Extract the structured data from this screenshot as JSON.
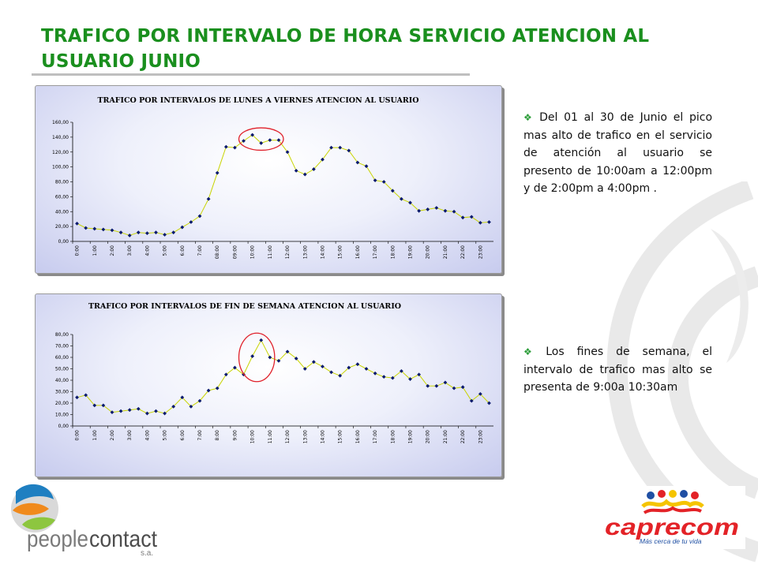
{
  "slide": {
    "title": "TRAFICO POR INTERVALO DE HORA SERVICIO ATENCION AL USUARIO JUNIO"
  },
  "notes": [
    {
      "icon": "diamond-bullet-icon",
      "text": "Del 01 al 30 de Junio el pico mas alto de trafico en el servicio de atención al usuario se presento de 10:00am a 12:00pm y de 2:00pm a 4:00pm ."
    },
    {
      "icon": "diamond-bullet-icon",
      "text": "Los fines de semana, el intervalo de trafico mas alto se presenta de 9:00a 10:30am"
    }
  ],
  "logos": {
    "peoplecontact": {
      "text_people": "people",
      "text_contact": "contact",
      "text_sa": "s.a."
    },
    "caprecom": {
      "name": "caprecom",
      "tagline": "Más cerca de tu vida"
    }
  },
  "colors": {
    "title": "#1a8f1e",
    "line": "#c8d400",
    "marker": "#0a1a6e",
    "highlight_circle": "#e0202a",
    "bullet": "#2e9e3b"
  },
  "chart_data": [
    {
      "type": "line",
      "title": "TRAFICO POR INTERVALOS DE LUNES A VIERNES ATENCION AL USUARIO",
      "categories": [
        "0:00",
        "0:30",
        "1:00",
        "1:30",
        "2:00",
        "2:30",
        "3:00",
        "3:30",
        "4:00",
        "4:30",
        "5:00",
        "5:30",
        "6:00",
        "6:30",
        "7:00",
        "7:30",
        "8:00",
        "8:30",
        "9:00",
        "9:30",
        "10:00",
        "10:30",
        "11:00",
        "11:30",
        "12:00",
        "12:30",
        "13:00",
        "13:30",
        "14:00",
        "14:30",
        "15:00",
        "15:30",
        "16:00",
        "16:30",
        "17:00",
        "17:30",
        "18:00",
        "18:30",
        "19:00",
        "19:30",
        "20:00",
        "20:30",
        "21:00",
        "21:30",
        "22:00",
        "22:30",
        "23:00",
        "23:30"
      ],
      "tick_labels": [
        "0:00",
        "1:00",
        "2:00",
        "3:00",
        "4:00",
        "5:00",
        "6:00",
        "7:00",
        "08:00",
        "09:00",
        "10:00",
        "11:00",
        "12:00",
        "13:00",
        "14:00",
        "15:00",
        "16:00",
        "17:00",
        "18:00",
        "19:00",
        "20:00",
        "21:00",
        "22:00",
        "23:00"
      ],
      "values": [
        24,
        18,
        17,
        16,
        15,
        12,
        8,
        12,
        11,
        12,
        9,
        12,
        19,
        26,
        34,
        57,
        92,
        127,
        126,
        135,
        143,
        132,
        136,
        136,
        120,
        95,
        90,
        97,
        110,
        126,
        126,
        122,
        106,
        101,
        82,
        80,
        68,
        57,
        52,
        41,
        43,
        45,
        41,
        40,
        32,
        33,
        25,
        26
      ],
      "y_ticks": [
        "0,00",
        "20,00",
        "40,00",
        "60,00",
        "80,00",
        "100,00",
        "120,00",
        "140,00",
        "160,00"
      ],
      "ylim": [
        0,
        160
      ],
      "highlight": {
        "from_index": 19,
        "to_index": 23
      }
    },
    {
      "type": "line",
      "title": "TRAFICO POR INTERVALOS DE FIN DE SEMANA ATENCION AL USUARIO",
      "categories": [
        "0:00",
        "0:30",
        "1:00",
        "1:30",
        "2:00",
        "2:30",
        "3:00",
        "3:30",
        "4:00",
        "4:30",
        "5:00",
        "5:30",
        "6:00",
        "6:30",
        "7:00",
        "7:30",
        "8:00",
        "8:30",
        "9:00",
        "9:30",
        "10:00",
        "10:30",
        "11:00",
        "11:30",
        "12:00",
        "12:30",
        "13:00",
        "13:30",
        "14:00",
        "14:30",
        "15:00",
        "15:30",
        "16:00",
        "16:30",
        "17:00",
        "17:30",
        "18:00",
        "18:30",
        "19:00",
        "19:30",
        "20:00",
        "20:30",
        "21:00",
        "21:30",
        "22:00",
        "22:30",
        "23:00",
        "23:30"
      ],
      "tick_labels": [
        "0:00",
        "1:00",
        "2:00",
        "3:00",
        "4:00",
        "5:00",
        "6:00",
        "7:00",
        "8:00",
        "9:00",
        "10:00",
        "11:00",
        "12:00",
        "13:00",
        "14:00",
        "15:00",
        "16:00",
        "17:00",
        "18:00",
        "19:00",
        "20:00",
        "21:00",
        "22:00",
        "23:00"
      ],
      "values": [
        25,
        27,
        18,
        18,
        12,
        13,
        14,
        15,
        11,
        13,
        11,
        17,
        25,
        17,
        22,
        31,
        33,
        45,
        51,
        45,
        61,
        75,
        60,
        57,
        65,
        59,
        50,
        56,
        52,
        47,
        44,
        51,
        54,
        50,
        46,
        43,
        42,
        48,
        41,
        45,
        35,
        35,
        38,
        33,
        34,
        22,
        28,
        20
      ],
      "y_ticks": [
        "0,00",
        "10,00",
        "20,00",
        "30,00",
        "40,00",
        "50,00",
        "60,00",
        "70,00",
        "80,00"
      ],
      "ylim": [
        0,
        80
      ],
      "highlight": {
        "from_index": 19,
        "to_index": 22
      }
    }
  ]
}
